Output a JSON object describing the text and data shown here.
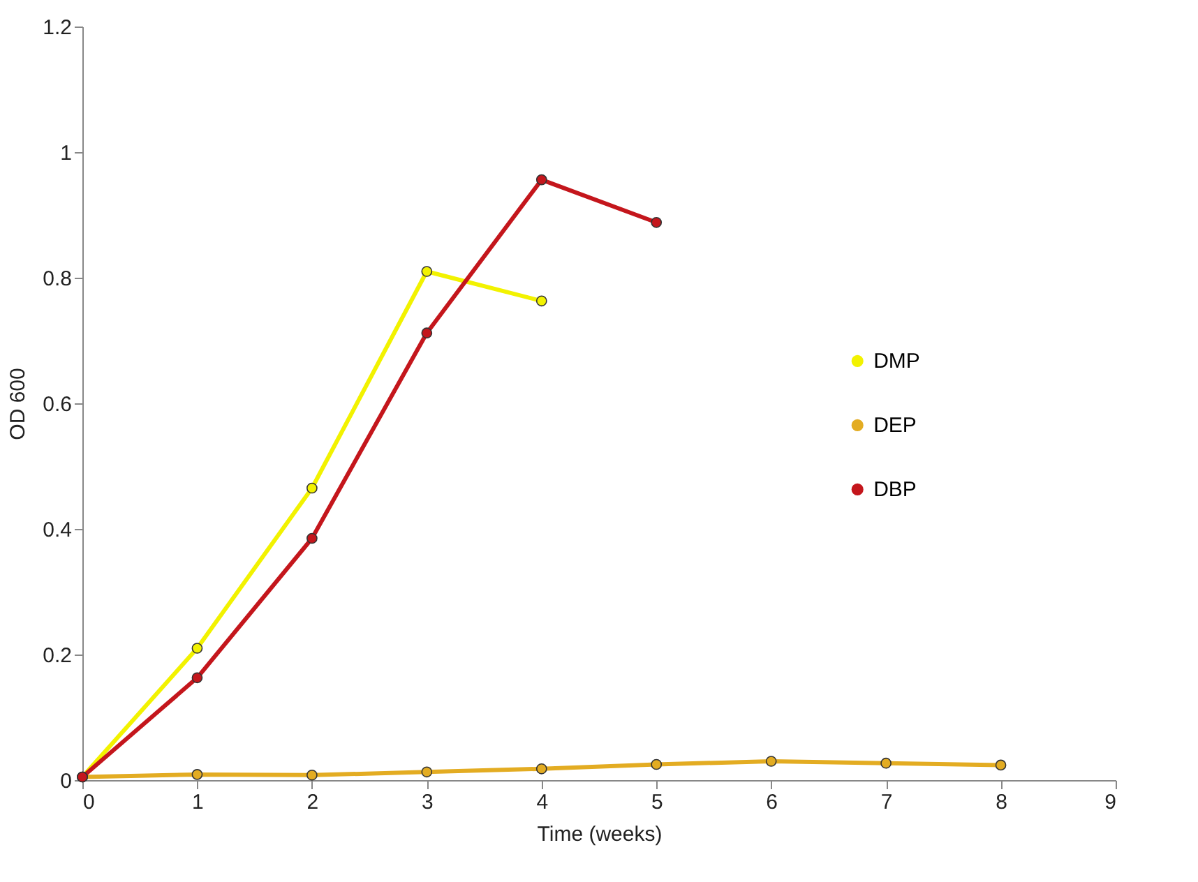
{
  "chart_data": {
    "type": "line",
    "xlabel": "Time (weeks)",
    "ylabel": "OD 600",
    "xlim": [
      0,
      9
    ],
    "xticks": [
      0,
      1,
      2,
      3,
      4,
      5,
      6,
      7,
      8,
      9
    ],
    "ylim": [
      0,
      1.2
    ],
    "yticks": [
      0,
      0.2,
      0.4,
      0.6,
      0.8,
      1,
      1.2
    ],
    "grid": false,
    "legend": "right",
    "marker": "circle",
    "line_style": "solid",
    "series": [
      {
        "name": "DMP",
        "color": "#f2f200",
        "x": [
          0,
          1,
          2,
          3,
          4
        ],
        "values": [
          0.005,
          0.21,
          0.465,
          0.81,
          0.763
        ]
      },
      {
        "name": "DEP",
        "color": "#e3ac22",
        "x": [
          0,
          1,
          2,
          3,
          4,
          5,
          6,
          7,
          8
        ],
        "values": [
          0.005,
          0.009,
          0.008,
          0.013,
          0.018,
          0.025,
          0.03,
          0.027,
          0.024
        ]
      },
      {
        "name": "DBP",
        "color": "#c4161c",
        "x": [
          0,
          1,
          2,
          3,
          4,
          5
        ],
        "values": [
          0.005,
          0.163,
          0.385,
          0.712,
          0.956,
          0.888
        ]
      }
    ]
  }
}
